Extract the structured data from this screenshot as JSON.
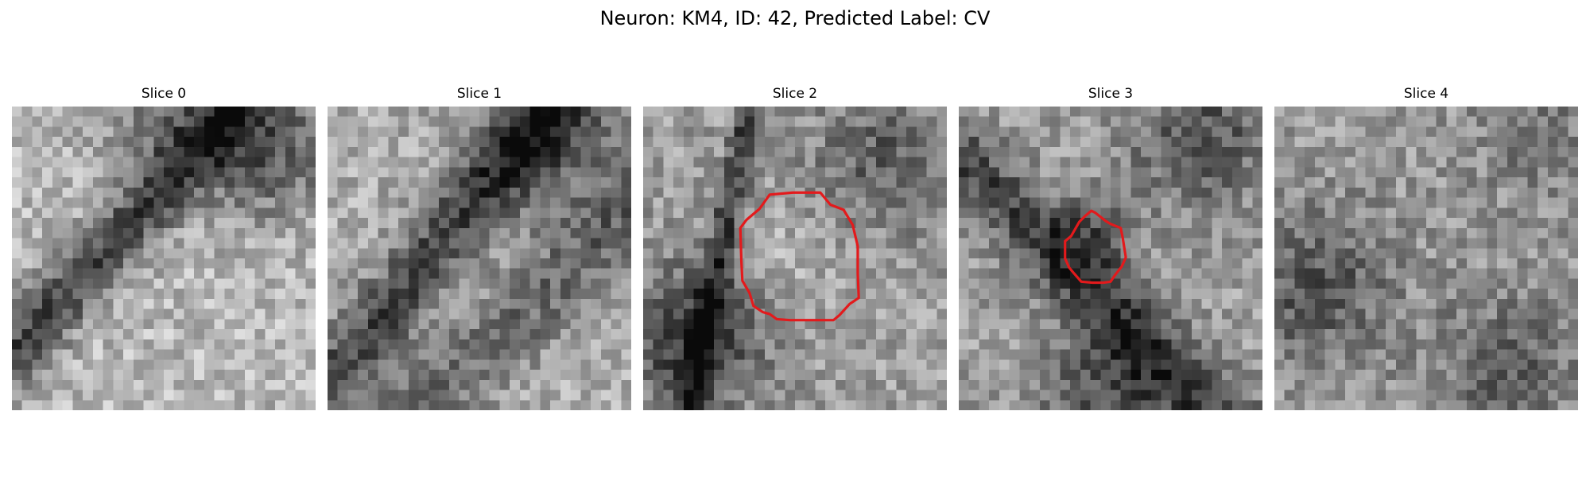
{
  "title": "Neuron: KM4, ID: 42, Predicted Label: CV",
  "slices": [
    {
      "label": "Slice 0",
      "contour": null
    },
    {
      "label": "Slice 1",
      "contour": null
    },
    {
      "label": "Slice 2",
      "contour": {
        "color": "#e31a1c"
      }
    },
    {
      "label": "Slice 3",
      "contour": {
        "color": "#e31a1c"
      }
    },
    {
      "label": "Slice 4",
      "contour": null
    }
  ],
  "colormap": "gray"
}
